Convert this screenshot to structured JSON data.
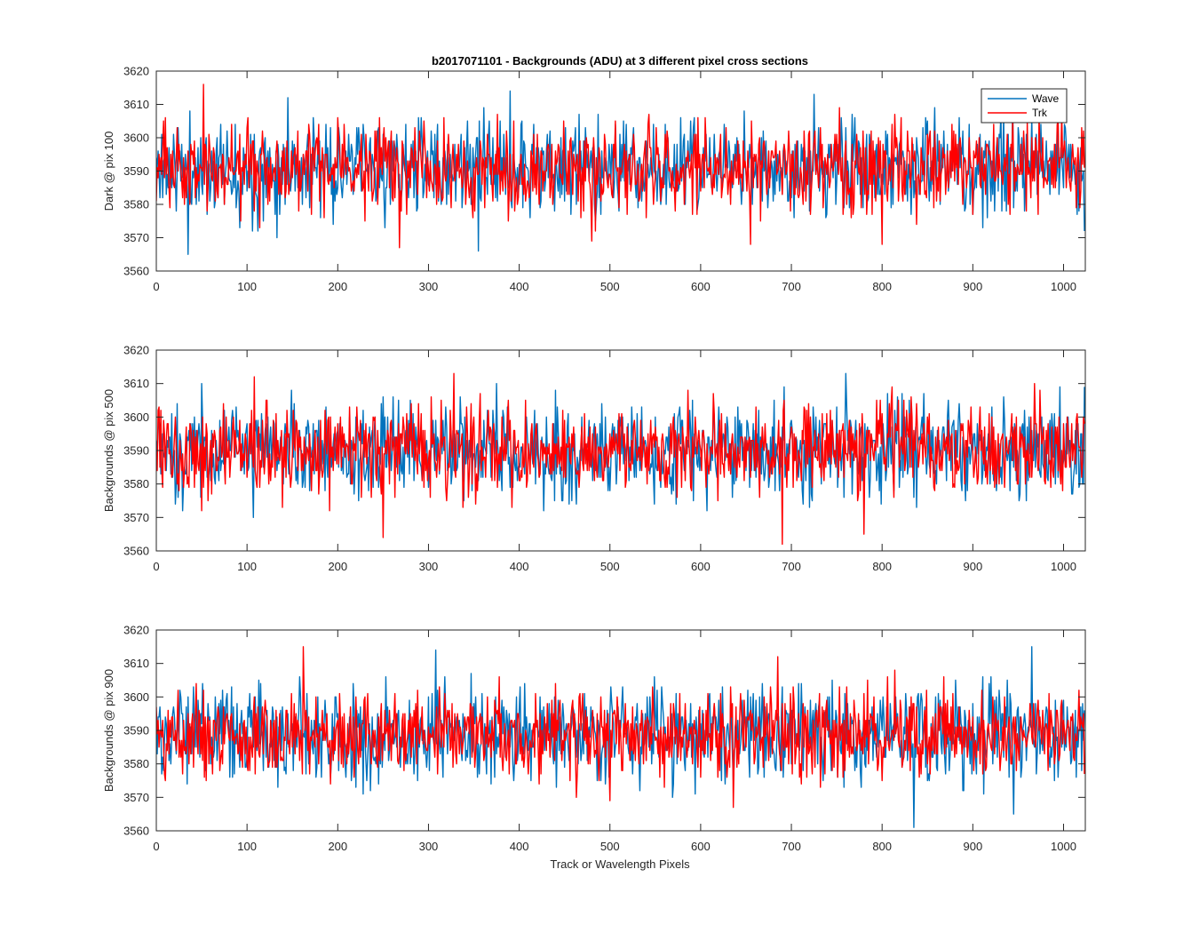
{
  "figure": {
    "title": "b2017071101 - Backgrounds (ADU) at 3 different pixel cross sections",
    "xlabel": "Track or Wavelength Pixels",
    "colors": {
      "wave": "#0072BD",
      "trk": "#FF0000",
      "axis": "#262626"
    }
  },
  "chart_data": [
    {
      "type": "line",
      "ylabel": "Dark @ pix 100",
      "xlim": [
        0,
        1024
      ],
      "ylim": [
        3560,
        3620
      ],
      "xticks": [
        "0",
        "100",
        "200",
        "300",
        "400",
        "500",
        "600",
        "700",
        "800",
        "900",
        "1000"
      ],
      "yticks": [
        "3560",
        "3570",
        "3580",
        "3590",
        "3600",
        "3610",
        "3620"
      ],
      "legend": {
        "placement": "top-right",
        "entries": [
          "Wave",
          "Trk"
        ]
      },
      "series": [
        {
          "name": "Wave",
          "n_points": 1024,
          "mean": 3591,
          "std": 7,
          "seed": 11,
          "extremes": [
            [
              35,
              3565
            ],
            [
              145,
              3612
            ],
            [
              355,
              3566
            ],
            [
              390,
              3614
            ],
            [
              725,
              3613
            ],
            [
              1023,
              3572
            ]
          ]
        },
        {
          "name": "Trk",
          "n_points": 1024,
          "mean": 3591,
          "std": 6.5,
          "seed": 23,
          "extremes": [
            [
              52,
              3616
            ],
            [
              268,
              3567
            ],
            [
              480,
              3569
            ],
            [
              655,
              3568
            ],
            [
              800,
              3568
            ]
          ]
        }
      ]
    },
    {
      "type": "line",
      "ylabel": "Backgrounds @ pix 500",
      "xlim": [
        0,
        1024
      ],
      "ylim": [
        3560,
        3620
      ],
      "xticks": [
        "0",
        "100",
        "200",
        "300",
        "400",
        "500",
        "600",
        "700",
        "800",
        "900",
        "1000"
      ],
      "yticks": [
        "3560",
        "3570",
        "3580",
        "3590",
        "3600",
        "3610",
        "3620"
      ],
      "series": [
        {
          "name": "Wave",
          "n_points": 1024,
          "mean": 3590,
          "std": 7,
          "seed": 37,
          "extremes": [
            [
              50,
              3610
            ],
            [
              375,
              3610
            ],
            [
              760,
              3613
            ],
            [
              1023,
              3609
            ]
          ]
        },
        {
          "name": "Trk",
          "n_points": 1024,
          "mean": 3590,
          "std": 6.5,
          "seed": 53,
          "extremes": [
            [
              108,
              3612
            ],
            [
              250,
              3564
            ],
            [
              328,
              3613
            ],
            [
              690,
              3562
            ],
            [
              780,
              3565
            ]
          ]
        }
      ]
    },
    {
      "type": "line",
      "ylabel": "Backgrounds @ pix 900",
      "xlim": [
        0,
        1024
      ],
      "ylim": [
        3560,
        3620
      ],
      "xticks": [
        "0",
        "100",
        "200",
        "300",
        "400",
        "500",
        "600",
        "700",
        "800",
        "900",
        "1000"
      ],
      "yticks": [
        "3560",
        "3570",
        "3580",
        "3590",
        "3600",
        "3610",
        "3620"
      ],
      "series": [
        {
          "name": "Wave",
          "n_points": 1024,
          "mean": 3589,
          "std": 7,
          "seed": 71,
          "extremes": [
            [
              308,
              3614
            ],
            [
              835,
              3561
            ],
            [
              945,
              3565
            ],
            [
              965,
              3615
            ]
          ]
        },
        {
          "name": "Trk",
          "n_points": 1024,
          "mean": 3589,
          "std": 6.5,
          "seed": 89,
          "extremes": [
            [
              162,
              3615
            ],
            [
              500,
              3569
            ],
            [
              636,
              3567
            ],
            [
              685,
              3612
            ]
          ]
        }
      ]
    }
  ]
}
